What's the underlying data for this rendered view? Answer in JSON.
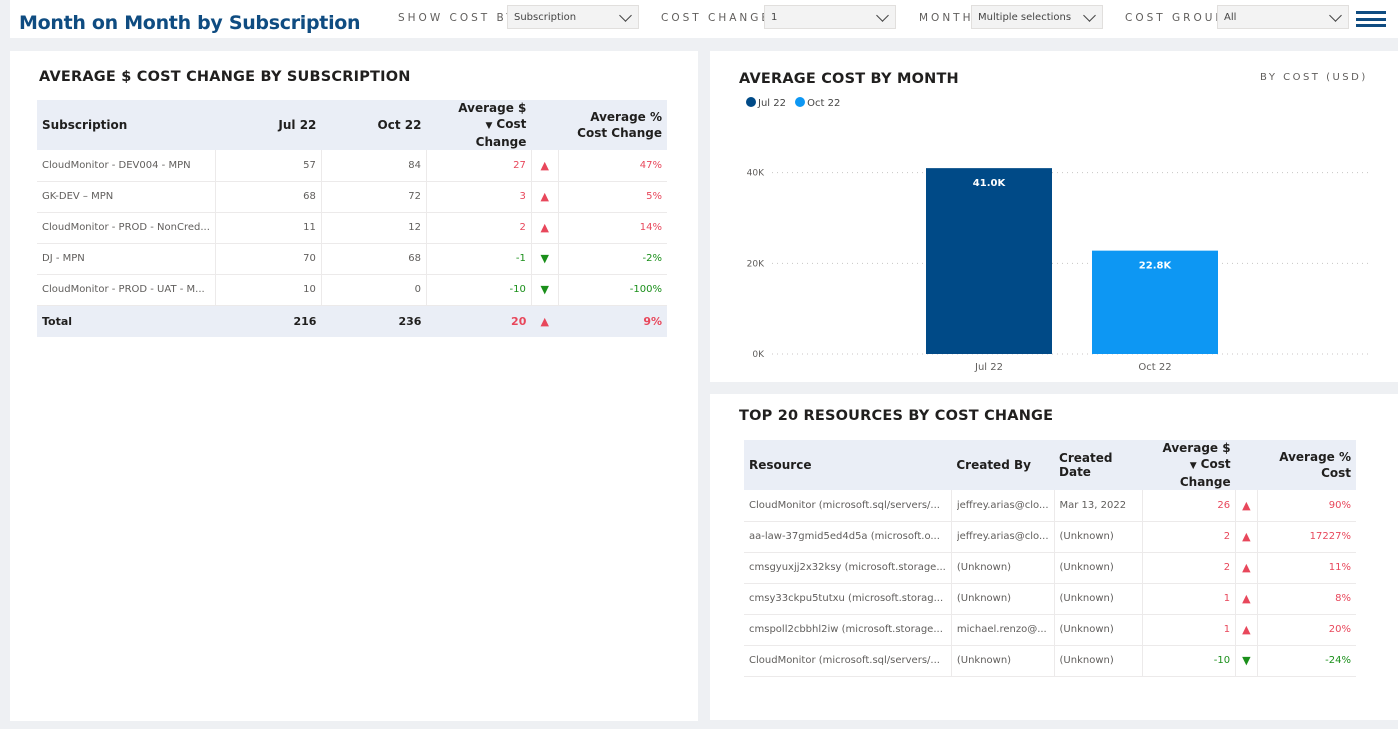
{
  "header": {
    "title": "Month on Month by Subscription",
    "filters": [
      {
        "label": "SHOW COST BY",
        "value": "Subscription"
      },
      {
        "label": "COST CHANGE",
        "value": "1"
      },
      {
        "label": "MONTH",
        "value": "Multiple selections"
      },
      {
        "label": "COST GROUP",
        "value": "All"
      }
    ]
  },
  "colors": {
    "accent": "#0f4c81",
    "jul": "#004a87",
    "oct": "#0d97f3",
    "up": "#e8475b",
    "down": "#1a8f1a"
  },
  "subs_table": {
    "title": "AVERAGE $ COST CHANGE BY SUBSCRIPTION",
    "headers": {
      "name": "Subscription",
      "jul": "Jul 22",
      "oct": "Oct 22",
      "avg_change_1": "Average $",
      "avg_change_2": "Cost Change",
      "avg_pct_1": "Average %",
      "avg_pct_2": "Cost Change"
    },
    "rows": [
      {
        "name": "CloudMonitor - DEV004 - MPN",
        "jul": "57",
        "oct": "84",
        "change": "27",
        "trend": "up",
        "pct": "47%"
      },
      {
        "name": "GK-DEV – MPN",
        "jul": "68",
        "oct": "72",
        "change": "3",
        "trend": "up",
        "pct": "5%"
      },
      {
        "name": "CloudMonitor - PROD - NonCred...",
        "jul": "11",
        "oct": "12",
        "change": "2",
        "trend": "up",
        "pct": "14%"
      },
      {
        "name": "DJ - MPN",
        "jul": "70",
        "oct": "68",
        "change": "-1",
        "trend": "down",
        "pct": "-2%"
      },
      {
        "name": "CloudMonitor - PROD - UAT - M...",
        "jul": "10",
        "oct": "0",
        "change": "-10",
        "trend": "down",
        "pct": "-100%"
      }
    ],
    "total": {
      "name": "Total",
      "jul": "216",
      "oct": "236",
      "change": "20",
      "trend": "up",
      "pct": "9%"
    }
  },
  "cost_chart": {
    "title": "AVERAGE COST BY MONTH",
    "subtitle": "BY COST (USD)"
  },
  "chart_data": {
    "type": "bar",
    "categories": [
      "Jul 22",
      "Oct 22"
    ],
    "values": [
      41000,
      22800
    ],
    "data_labels": [
      "41.0K",
      "22.8K"
    ],
    "legend": [
      "Jul 22",
      "Oct 22"
    ],
    "legend_position": "top-left",
    "yticks": [
      "0K",
      "20K",
      "40K"
    ],
    "ylim": [
      0,
      45000
    ],
    "grid": true
  },
  "resources_table": {
    "title": "TOP 20 RESOURCES BY COST CHANGE",
    "headers": {
      "resource": "Resource",
      "created_by": "Created By",
      "created_date": "Created Date",
      "avg_change_1": "Average $",
      "avg_change_2": "Cost Change",
      "avg_pct_1": "Average %",
      "avg_pct_2": "Cost"
    },
    "rows": [
      {
        "resource": "CloudMonitor (microsoft.sql/servers/...",
        "created_by": "jeffrey.arias@clo...",
        "created_date": "Mar 13, 2022",
        "change": "26",
        "trend": "up",
        "pct": "90%"
      },
      {
        "resource": "aa-law-37gmid5ed4d5a (microsoft.o...",
        "created_by": "jeffrey.arias@clo...",
        "created_date": "(Unknown)",
        "change": "2",
        "trend": "up",
        "pct": "17227%"
      },
      {
        "resource": "cmsgyuxjj2x32ksy (microsoft.storage...",
        "created_by": "(Unknown)",
        "created_date": "(Unknown)",
        "change": "2",
        "trend": "up",
        "pct": "11%"
      },
      {
        "resource": "cmsy33ckpu5tutxu (microsoft.storag...",
        "created_by": "(Unknown)",
        "created_date": "(Unknown)",
        "change": "1",
        "trend": "up",
        "pct": "8%"
      },
      {
        "resource": "cmspoll2cbbhl2iw (microsoft.storage...",
        "created_by": "michael.renzo@...",
        "created_date": "(Unknown)",
        "change": "1",
        "trend": "up",
        "pct": "20%"
      },
      {
        "resource": "CloudMonitor (microsoft.sql/servers/...",
        "created_by": "(Unknown)",
        "created_date": "(Unknown)",
        "change": "-10",
        "trend": "down",
        "pct": "-24%"
      }
    ]
  }
}
